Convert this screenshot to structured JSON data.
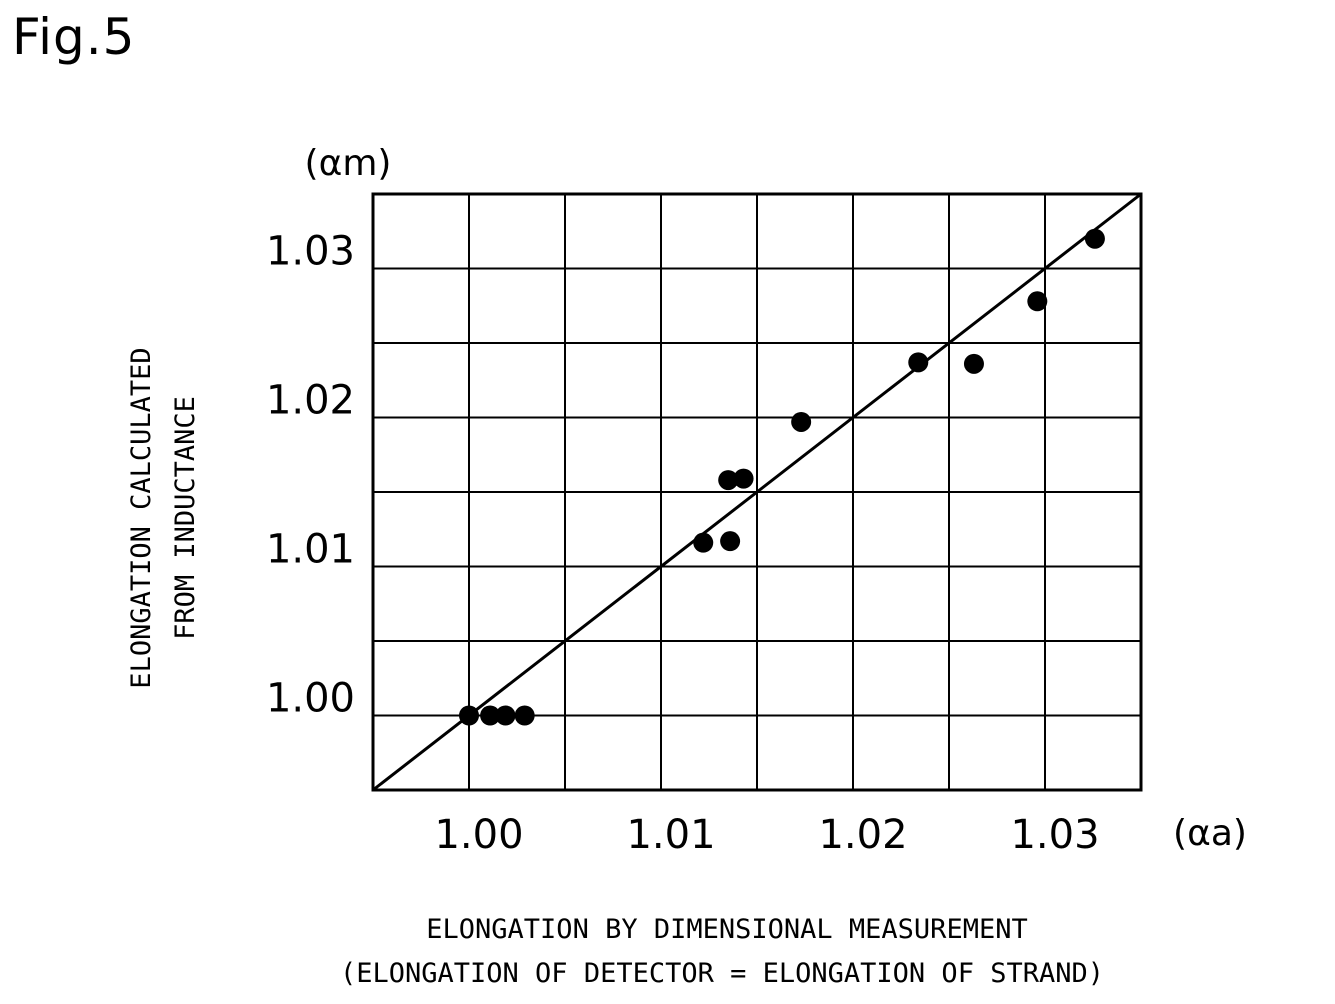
{
  "figure_label": "Fig.5",
  "chart_data": {
    "type": "scatter",
    "x_unit_label": "(αa)",
    "y_unit_label": "(αm)",
    "xlabel_lines": [
      "ELONGATION BY DIMENSIONAL MEASUREMENT",
      "(ELONGATION OF DETECTOR = ELONGATION OF STRAND)"
    ],
    "ylabel_lines": [
      "ELONGATION CALCULATED",
      "FROM INDUCTANCE"
    ],
    "xlim": [
      0.995,
      1.035
    ],
    "ylim": [
      0.995,
      1.035
    ],
    "x_ticks": [
      1.0,
      1.01,
      1.02,
      1.03
    ],
    "x_tick_labels": [
      "1.00",
      "1.01",
      "1.02",
      "1.03"
    ],
    "y_ticks": [
      1.0,
      1.01,
      1.02,
      1.03
    ],
    "y_tick_labels": [
      "1.00",
      "1.01",
      "1.02",
      "1.03"
    ],
    "grid_step": 0.005,
    "grid": true,
    "points": [
      {
        "x": 1.0,
        "y": 1.0
      },
      {
        "x": 1.0011,
        "y": 1.0
      },
      {
        "x": 1.0019,
        "y": 1.0
      },
      {
        "x": 1.0029,
        "y": 1.0
      },
      {
        "x": 1.0122,
        "y": 1.0116
      },
      {
        "x": 1.0135,
        "y": 1.0158
      },
      {
        "x": 1.0136,
        "y": 1.0117
      },
      {
        "x": 1.0143,
        "y": 1.0159
      },
      {
        "x": 1.0173,
        "y": 1.0197
      },
      {
        "x": 1.0234,
        "y": 1.0237
      },
      {
        "x": 1.0263,
        "y": 1.0236
      },
      {
        "x": 1.0296,
        "y": 1.0278
      },
      {
        "x": 1.0326,
        "y": 1.032
      }
    ],
    "fit_line": {
      "slope": 1.0,
      "intercept": 0.0
    }
  }
}
